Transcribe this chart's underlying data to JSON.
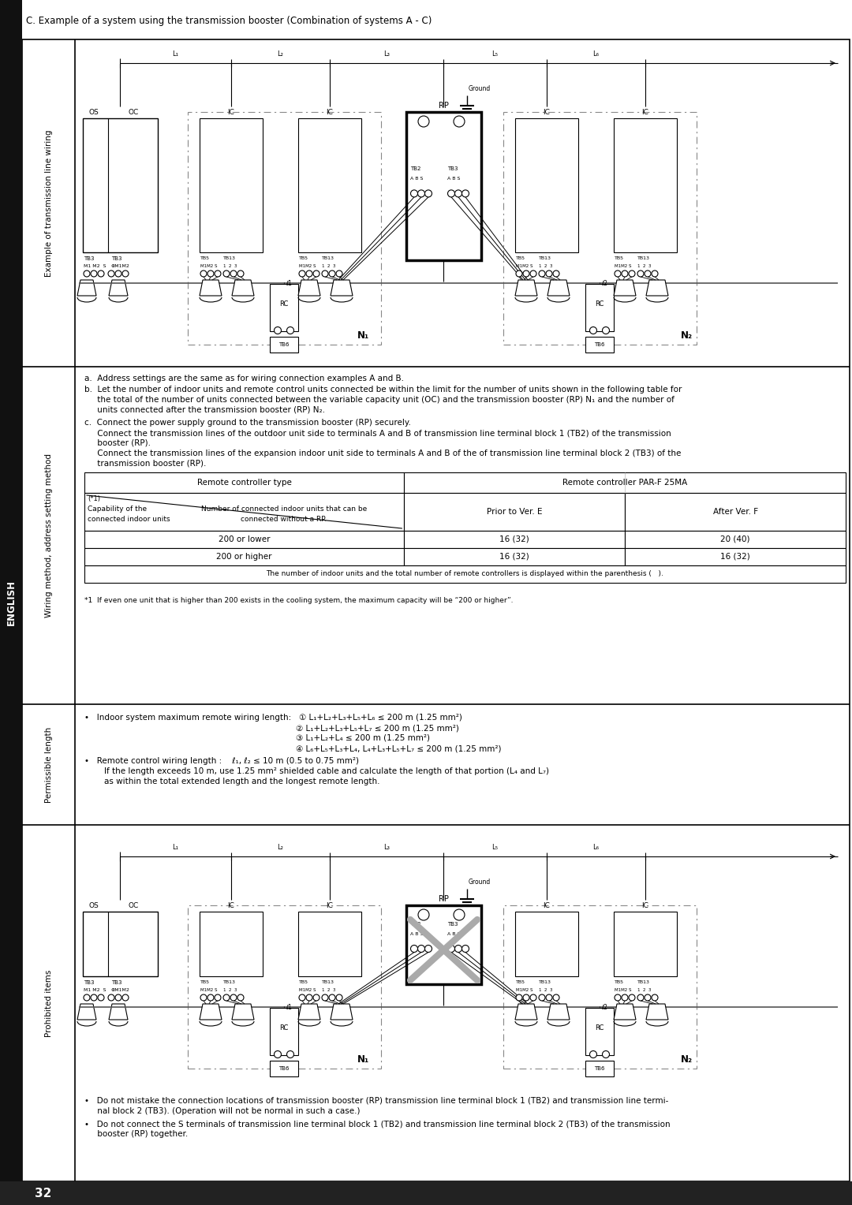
{
  "page_title": "C. Example of a system using the transmission booster (Combination of systems A - C)",
  "label_top": "Example of transmission line wiring",
  "label_mid": "Wiring method, address setting method",
  "label_perm": "Permissible length",
  "label_proh": "Prohibited items",
  "side_label": "ENGLISH",
  "page_number": "32",
  "table_rows": [
    [
      "200 or lower",
      "16 (32)",
      "20 (40)"
    ],
    [
      "200 or higher",
      "16 (32)",
      "16 (32)"
    ]
  ],
  "table_footnote1": "The number of indoor units and the total number of remote controllers is displayed within the parenthesis (   ).",
  "table_footnote2": "*1  If even one unit that is higher than 200 exists in the cooling system, the maximum capacity will be “200 or higher”.",
  "note_a": "a.  Address settings are the same as for wiring connection examples A and B.",
  "note_b1": "b.  Let the number of indoor units and remote control units connected be within the limit for the number of units shown in the following table for",
  "note_b2": "     the total of the number of units connected between the variable capacity unit (OC) and the transmission booster (RP) N₁ and the number of",
  "note_b3": "     units connected after the transmission booster (RP) N₂.",
  "note_c1": "c.  Connect the power supply ground to the transmission booster (RP) securely.",
  "note_c2": "     Connect the transmission lines of the outdoor unit side to terminals A and B of transmission line terminal block 1 (TB2) of the transmission",
  "note_c3": "     booster (RP).",
  "note_c4": "     Connect the transmission lines of the expansion indoor unit side to terminals A and B of the of transmission line terminal block 2 (TB3) of the",
  "note_c5": "     transmission booster (RP).",
  "perm_line1a": "•   Indoor system maximum remote wiring length:   ① L₁+L₂+L₃+L₅+L₆ ≤ 200 m (1.25 mm²)",
  "perm_line2": "                                                                            ② L₁+L₂+L₃+L₅+L₇ ≤ 200 m (1.25 mm²)",
  "perm_line3": "                                                                            ③ L₁+L₂+L₄ ≤ 200 m (1.25 mm²)",
  "perm_line4": "                                                                            ④ L₆+L₅+L₃+L₄, L₄+L₃+L₅+L₇ ≤ 200 m (1.25 mm²)",
  "perm_line5": "•   Remote control wiring length :    ℓ₁, ℓ₂ ≤ 10 m (0.5 to 0.75 mm²)",
  "perm_line6": "     If the length exceeds 10 m, use 1.25 mm² shielded cable and calculate the length of that portion (L₄ and L₇)",
  "perm_line7": "     as within the total extended length and the longest remote length.",
  "proh1a": "•   Do not mistake the connection locations of transmission booster (RP) transmission line terminal block 1 (TB2) and transmission line termi-",
  "proh1b": "     nal block 2 (TB3). (Operation will not be normal in such a case.)",
  "proh2a": "•   Do not connect the S terminals of transmission line terminal block 1 (TB2) and transmission line terminal block 2 (TB3) of the transmission",
  "proh2b": "     booster (RP) together.",
  "bg_color": "#ffffff"
}
